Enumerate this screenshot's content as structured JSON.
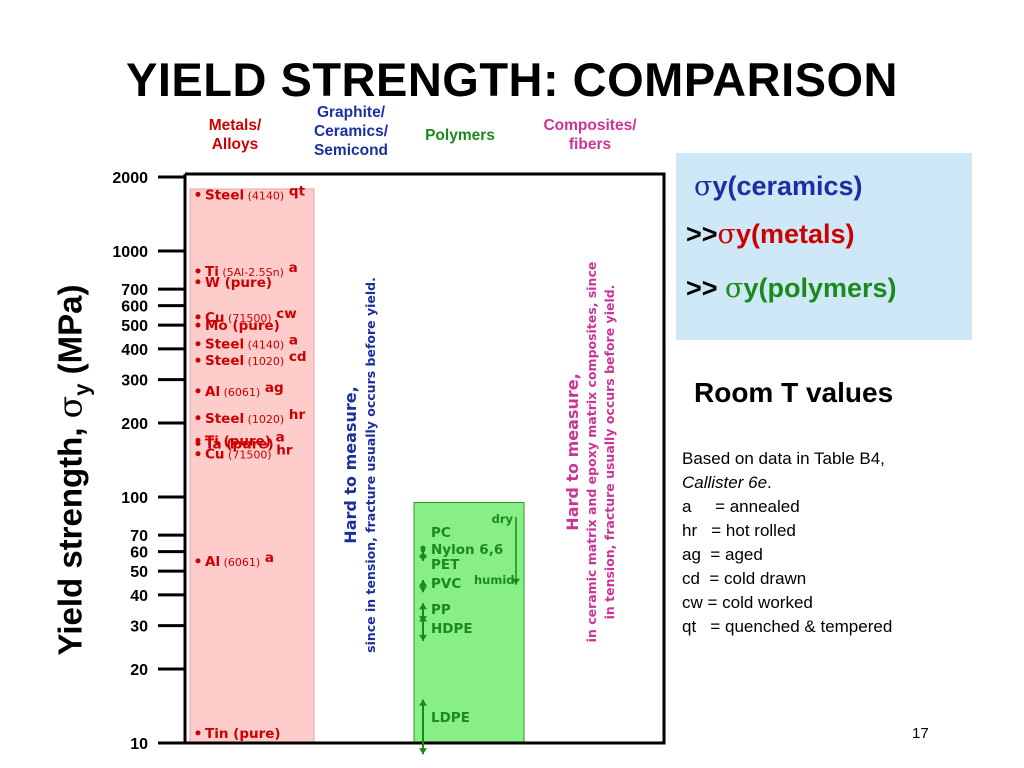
{
  "title": "YIELD STRENGTH: COMPARISON",
  "categories": [
    {
      "label": "Metals/\nAlloys",
      "color": "#cc0000"
    },
    {
      "label": "Graphite/\nCeramics/\nSemicond",
      "color": "#1c2fa0"
    },
    {
      "label": "Polymers",
      "color": "#1a8a1a"
    },
    {
      "label": "Composites/\nfibers",
      "color": "#cc3399"
    }
  ],
  "y_axis_label": {
    "main": "Yield strength, ",
    "sigma": "σ",
    "sub": "y",
    "unit": " (MPa)"
  },
  "y_ticks": [
    "2000",
    "1000",
    "700",
    "600",
    "500",
    "400",
    "300",
    "200",
    "100",
    "70",
    "60",
    "50",
    "40",
    "30",
    "20",
    "10"
  ],
  "chart_data": {
    "type": "bar",
    "y_scale": "log",
    "ylim": [
      10,
      2000
    ],
    "ylabel": "Yield strength, σy (MPa)",
    "categories": [
      "Metals/Alloys",
      "Graphite/Ceramics/Semicond",
      "Polymers",
      "Composites/fibers"
    ],
    "ranges": {
      "Metals/Alloys": [
        10,
        2000
      ],
      "Polymers": [
        10,
        95
      ]
    },
    "metals": [
      {
        "name": "Steel",
        "spec": "(4140)",
        "note": "qt",
        "value": 1700
      },
      {
        "name": "Ti",
        "spec": "(5Al-2.5Sn)",
        "note": "a",
        "value": 830
      },
      {
        "name": "W (pure)",
        "spec": "",
        "note": "",
        "value": 750
      },
      {
        "name": "Cu",
        "spec": "(71500)",
        "note": "cw",
        "value": 540
      },
      {
        "name": "Mo (pure)",
        "spec": "",
        "note": "",
        "value": 500
      },
      {
        "name": "Steel",
        "spec": "(4140)",
        "note": "a",
        "value": 420
      },
      {
        "name": "Steel",
        "spec": "(1020)",
        "note": "cd",
        "value": 360
      },
      {
        "name": "Al",
        "spec": "(6061)",
        "note": "ag",
        "value": 270
      },
      {
        "name": "Steel",
        "spec": "(1020)",
        "note": "hr",
        "value": 210
      },
      {
        "name": "Ti (pure)",
        "spec": "",
        "note": "a",
        "value": 170
      },
      {
        "name": "Ta (pure)",
        "spec": "",
        "note": "",
        "value": 165
      },
      {
        "name": "Cu",
        "spec": "(71500)",
        "note": "hr",
        "value": 150
      },
      {
        "name": "Al",
        "spec": "(6061)",
        "note": "a",
        "value": 55
      },
      {
        "name": "Tin (pure)",
        "spec": "",
        "note": "",
        "value": 11
      }
    ],
    "polymers": [
      {
        "name": "PC",
        "low": 62,
        "high": 62
      },
      {
        "name": "Nylon 6,6",
        "low": 44,
        "high": 83
      },
      {
        "name": "PET",
        "low": 55,
        "high": 60
      },
      {
        "name": "PVC",
        "low": 41,
        "high": 46
      },
      {
        "name": "PP",
        "low": 31,
        "high": 37
      },
      {
        "name": "HDPE",
        "low": 26,
        "high": 33
      },
      {
        "name": "LDPE",
        "low": 9,
        "high": 15
      }
    ],
    "nylon_conditions": {
      "dry": "dry",
      "humid": "humid"
    },
    "ceramics_note": {
      "line1": "Hard to measure,",
      "line2": "since in tension, fracture usually occurs before yield."
    },
    "composites_note": {
      "line1": "Hard to measure,",
      "line2": "in ceramic matrix and epoxy matrix composites, since",
      "line3": "in tension, fracture usually occurs before yield."
    }
  },
  "summary": {
    "line1_sub": "y(ceramics)",
    "line2_prefix": ">>",
    "line2_sub": "y(metals)",
    "line3_prefix": ">> ",
    "line3_sub": "y(polymers)",
    "sigma": "σ",
    "colors": {
      "ceramics": "#1c2fa0",
      "metals": "#cc0000",
      "polymers": "#1a8a1a",
      "box": "#cfe8f8"
    }
  },
  "room_t": "Room T values",
  "notes": [
    {
      "text": "Based on data in Table B4,",
      "style": "normal"
    },
    {
      "text": "Callister 6e",
      "style": "italic",
      "suffix": "."
    },
    {
      "text": "a     = annealed",
      "style": "normal"
    },
    {
      "text": "hr   = hot rolled",
      "style": "normal"
    },
    {
      "text": "ag  = aged",
      "style": "normal"
    },
    {
      "text": "cd  = cold drawn",
      "style": "normal"
    },
    {
      "text": "cw = cold worked",
      "style": "normal"
    },
    {
      "text": "qt   = quenched & tempered",
      "style": "normal"
    }
  ],
  "page_number": "17"
}
